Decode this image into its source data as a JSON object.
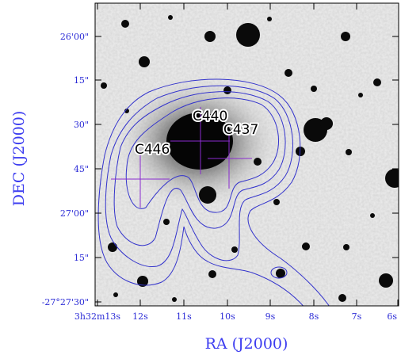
{
  "figure": {
    "x_axis_title": "RA (J2000)",
    "y_axis_title": "DEC (J2000)",
    "ra_ticks": [
      "3h32m13s",
      "12s",
      "11s",
      "10s",
      "9s",
      "8s",
      "7s",
      "6s"
    ],
    "dec_ticks": [
      "26'00\"",
      "15\"",
      "30\"",
      "45\"",
      "27'00\"",
      "15\"",
      "-27°27'30\""
    ],
    "sources": [
      {
        "label": "C440"
      },
      {
        "label": "C437"
      },
      {
        "label": "C446"
      }
    ],
    "colors": {
      "axis_text": "#3c3cf0",
      "contours": "#3333cc",
      "crosses": "#8a2bd0"
    }
  }
}
